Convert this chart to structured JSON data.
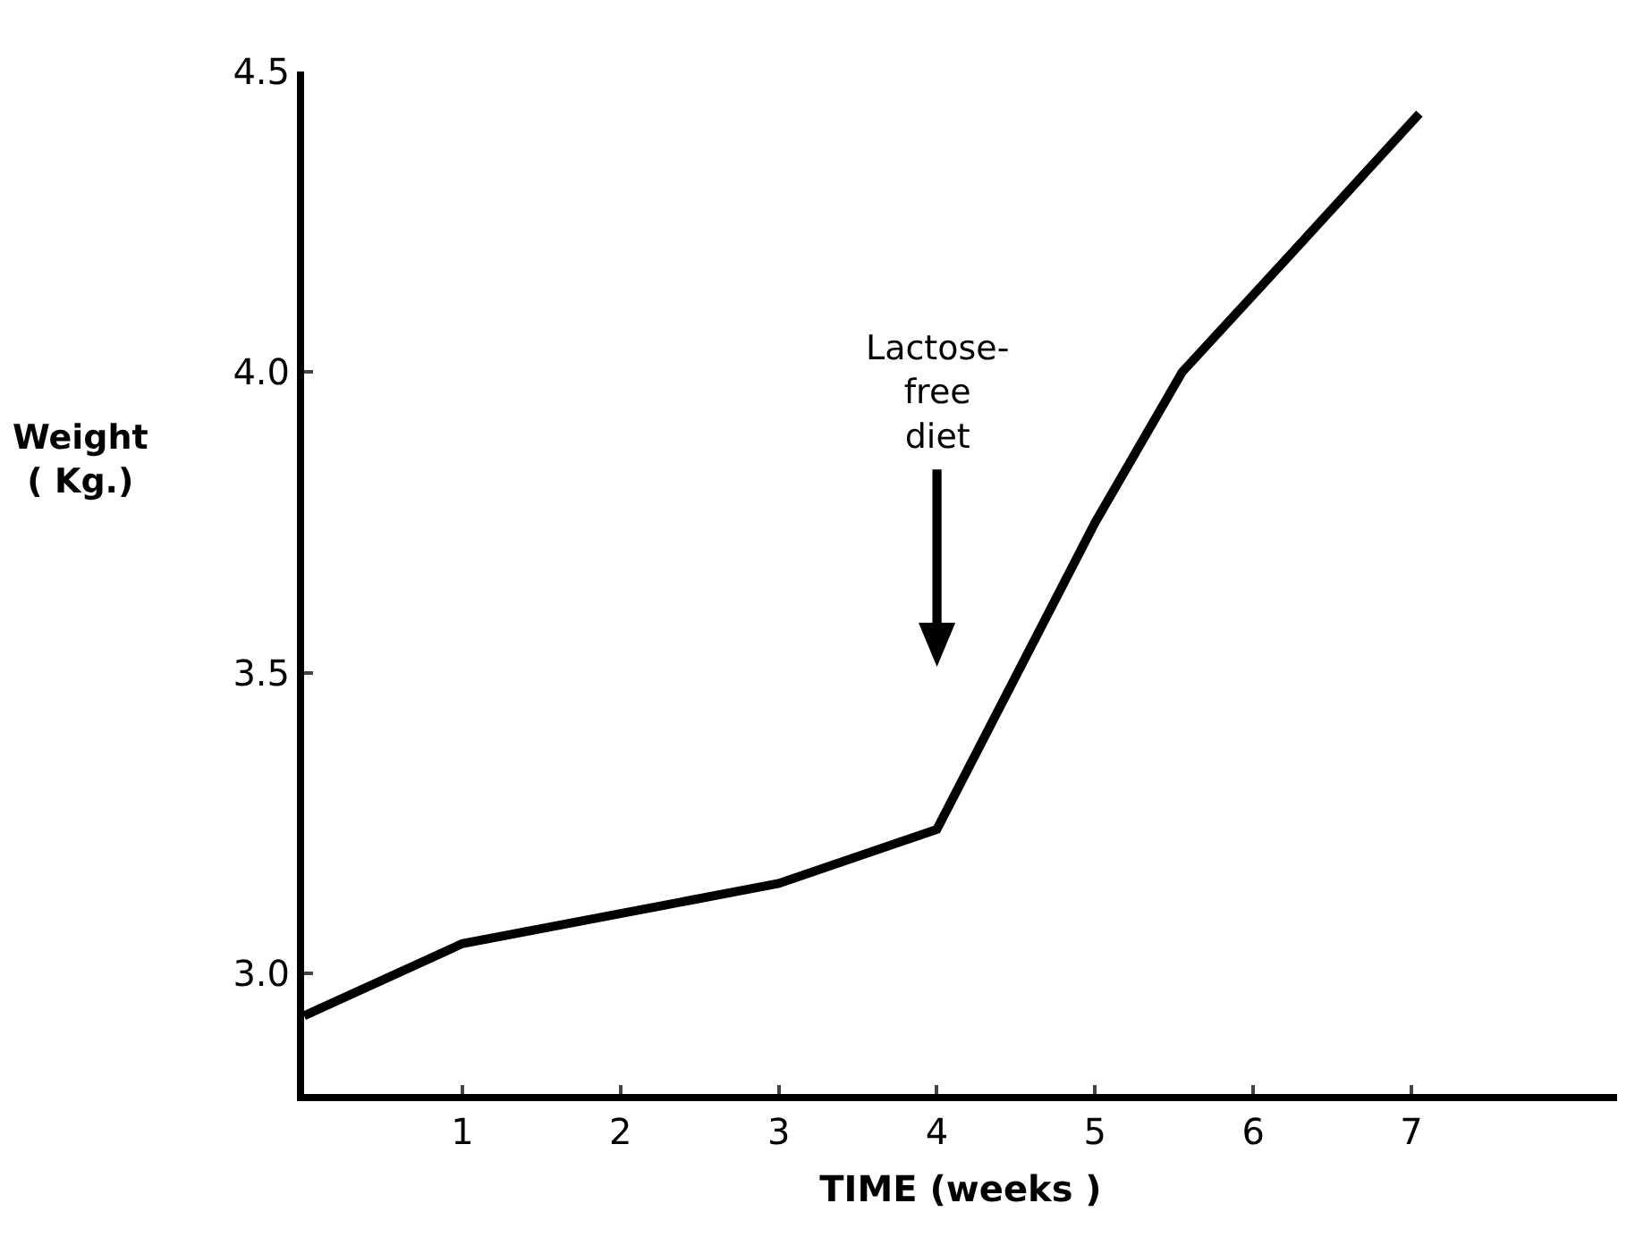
{
  "chart_data": {
    "type": "line",
    "xlabel": "TIME (weeks )",
    "ylabel": "Weight\n( Kg.)",
    "x": [
      0,
      1,
      2,
      3,
      4,
      5,
      5.55,
      6.25,
      7.05
    ],
    "series": [
      {
        "color": "#000000",
        "values": [
          2.93,
          3.05,
          3.1,
          3.15,
          3.24,
          3.75,
          4.0,
          4.2,
          4.43
        ]
      }
    ],
    "xlim": [
      0,
      8.3
    ],
    "xticks": [
      1,
      2,
      3,
      4,
      5,
      6,
      7
    ],
    "ylim": [
      2.8,
      4.5
    ],
    "yticks": [
      {
        "value": 3,
        "label": "3.0"
      },
      {
        "value": 3.5,
        "label": "3.5"
      },
      {
        "value": 4,
        "label": "4.0"
      },
      {
        "value": 4.5,
        "label": "4.5"
      }
    ],
    "annotations": [
      "Lactose-\nfree\ndiet"
    ],
    "marker": "none",
    "line_style": "solid"
  }
}
